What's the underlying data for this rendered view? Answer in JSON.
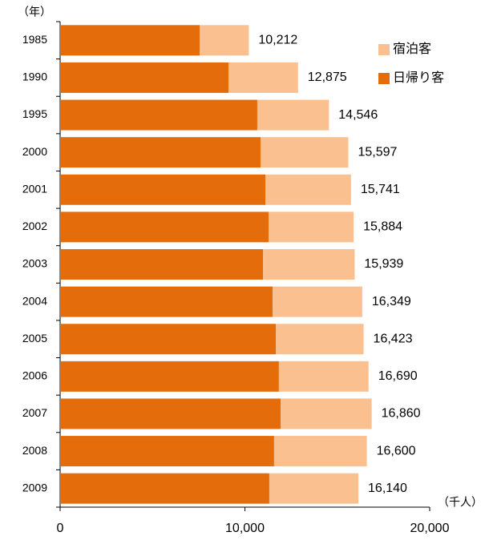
{
  "chart_data": {
    "type": "stacked-barh",
    "y_axis_label": "（年）",
    "x_axis_label": "（千人）",
    "categories": [
      "1985",
      "1990",
      "1995",
      "2000",
      "2001",
      "2002",
      "2003",
      "2004",
      "2005",
      "2006",
      "2007",
      "2008",
      "2009"
    ],
    "series": [
      {
        "name": "日帰り客",
        "color": "#e46c0a",
        "values": [
          7550,
          9110,
          10670,
          10850,
          11110,
          11280,
          10980,
          11500,
          11670,
          11840,
          11930,
          11580,
          11320
        ]
      },
      {
        "name": "宿泊客",
        "color": "#fac090",
        "values": [
          2662,
          3765,
          3876,
          4747,
          4631,
          4604,
          4959,
          4849,
          4753,
          4850,
          4930,
          5020,
          4820
        ]
      }
    ],
    "totals": [
      10212,
      12875,
      14546,
      15597,
      15741,
      15884,
      15939,
      16349,
      16423,
      16690,
      16860,
      16600,
      16140
    ],
    "total_labels": [
      "10,212",
      "12,875",
      "14,546",
      "15,597",
      "15,741",
      "15,884",
      "15,939",
      "16,349",
      "16,423",
      "16,690",
      "16,860",
      "16,600",
      "16,140"
    ],
    "xlim": [
      0,
      20000
    ],
    "xticks": [
      0,
      {
        "value": 10000,
        "label": "10,000"
      },
      {
        "value": 20000,
        "label": "20,000"
      }
    ]
  }
}
